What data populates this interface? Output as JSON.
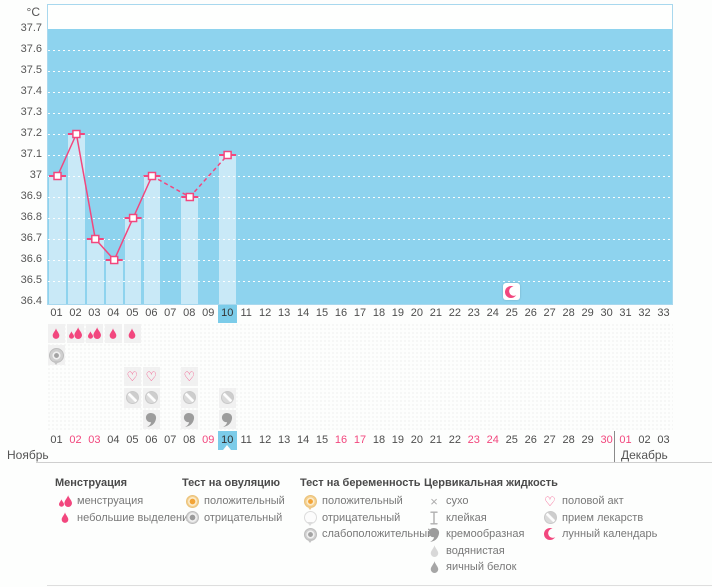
{
  "chart_data": {
    "type": "line",
    "title": "",
    "xlabel": "",
    "ylabel": "°C",
    "ylim": [
      36.4,
      37.7
    ],
    "y_tick_step": 0.1,
    "grid": true,
    "legend_position": "bottom",
    "x": [
      "01",
      "02",
      "03",
      "04",
      "05",
      "06",
      "07",
      "08",
      "09",
      "10",
      "11",
      "12",
      "13",
      "14",
      "15",
      "16",
      "17",
      "18",
      "19",
      "20",
      "21",
      "22",
      "23",
      "24",
      "25",
      "26",
      "27",
      "28",
      "29",
      "30",
      "31",
      "32",
      "33"
    ],
    "series": [
      {
        "name": "basal-temperature",
        "values": [
          37.0,
          37.2,
          36.7,
          36.6,
          36.8,
          37.0,
          null,
          36.9,
          null,
          37.1,
          null,
          null,
          null,
          null,
          null,
          null,
          null,
          null,
          null,
          null,
          null,
          null,
          null,
          null,
          null,
          null,
          null,
          null,
          null,
          null,
          null,
          null,
          null
        ]
      }
    ]
  },
  "chart": {
    "unit": "°C",
    "y_ticks": [
      "37.7",
      "37.6",
      "37.5",
      "37.4",
      "37.3",
      "37.2",
      "37.1",
      "37",
      "36.9",
      "36.8",
      "36.7",
      "36.6",
      "36.5",
      "36.4"
    ],
    "cycle_days": [
      "01",
      "02",
      "03",
      "04",
      "05",
      "06",
      "07",
      "08",
      "09",
      "10",
      "11",
      "12",
      "13",
      "14",
      "15",
      "16",
      "17",
      "18",
      "19",
      "20",
      "21",
      "22",
      "23",
      "24",
      "25",
      "26",
      "27",
      "28",
      "29",
      "30",
      "31",
      "32",
      "33"
    ],
    "selected_day": "10",
    "moon_day": "25",
    "colors": {
      "plot_bg": "#8ED3EE",
      "bar": "#C9E9F7",
      "line": "#F2477E",
      "selected_bg": "#7CCCE9",
      "plot_border": "#A8D8EE",
      "weekend_text": "#F2477E"
    }
  },
  "symptom_rows": [
    {
      "id": "bleeding",
      "cells": {
        "01": "drop-small",
        "02": "drops-heavy",
        "03": "drops-heavy",
        "04": "drop-small",
        "05": "drop-small"
      }
    },
    {
      "id": "pregnancy-test",
      "cells": {
        "01": "test-weak-positive"
      }
    },
    {
      "id": "intercourse",
      "cells": {
        "05": "heart",
        "06": "heart",
        "08": "heart"
      }
    },
    {
      "id": "medication",
      "cells": {
        "05": "pill",
        "06": "pill",
        "08": "pill",
        "10": "pill"
      }
    },
    {
      "id": "cervical-fluid",
      "cells": {
        "06": "creamy",
        "08": "creamy",
        "10": "creamy"
      }
    }
  ],
  "calendar": {
    "selected": "10",
    "months": [
      {
        "label": "Ноябрь",
        "days": [
          "01",
          "02",
          "03",
          "04",
          "05",
          "06",
          "07",
          "08",
          "09",
          "10",
          "11",
          "12",
          "13",
          "14",
          "15",
          "16",
          "17",
          "18",
          "19",
          "20",
          "21",
          "22",
          "23",
          "24",
          "25",
          "26",
          "27",
          "28",
          "29",
          "30"
        ],
        "weekends": [
          "02",
          "03",
          "09",
          "16",
          "17",
          "23",
          "24",
          "30"
        ]
      },
      {
        "label": "Декабрь",
        "days": [
          "01",
          "02",
          "03"
        ],
        "weekends": [
          "01"
        ]
      }
    ]
  },
  "legend": {
    "groups": [
      {
        "title": "Менструация",
        "items": [
          {
            "icon": "drops-heavy",
            "label": "менструация"
          },
          {
            "icon": "drop-small",
            "label": "небольшие выделения"
          }
        ]
      },
      {
        "title": "Тест на овуляцию",
        "items": [
          {
            "icon": "ovul-pos",
            "label": "положительный"
          },
          {
            "icon": "ovul-neg",
            "label": "отрицательный"
          }
        ]
      },
      {
        "title": "Тест на беременность",
        "items": [
          {
            "icon": "preg-pos",
            "label": "положительный"
          },
          {
            "icon": "preg-neg",
            "label": "отрицательный"
          },
          {
            "icon": "preg-weak",
            "label": "слабоположительный"
          }
        ]
      },
      {
        "title": "Цервикальная жидкость",
        "items": [
          {
            "icon": "dry",
            "label": "сухо"
          },
          {
            "icon": "sticky",
            "label": "клейкая"
          },
          {
            "icon": "creamy",
            "label": "кремообразная"
          },
          {
            "icon": "watery",
            "label": "водянистая"
          },
          {
            "icon": "eggwhite",
            "label": "яичный белок"
          }
        ]
      },
      {
        "title": "",
        "items": [
          {
            "icon": "heart",
            "label": "половой акт"
          },
          {
            "icon": "pill",
            "label": "прием лекарств"
          },
          {
            "icon": "moon",
            "label": "лунный календарь"
          }
        ]
      }
    ]
  }
}
